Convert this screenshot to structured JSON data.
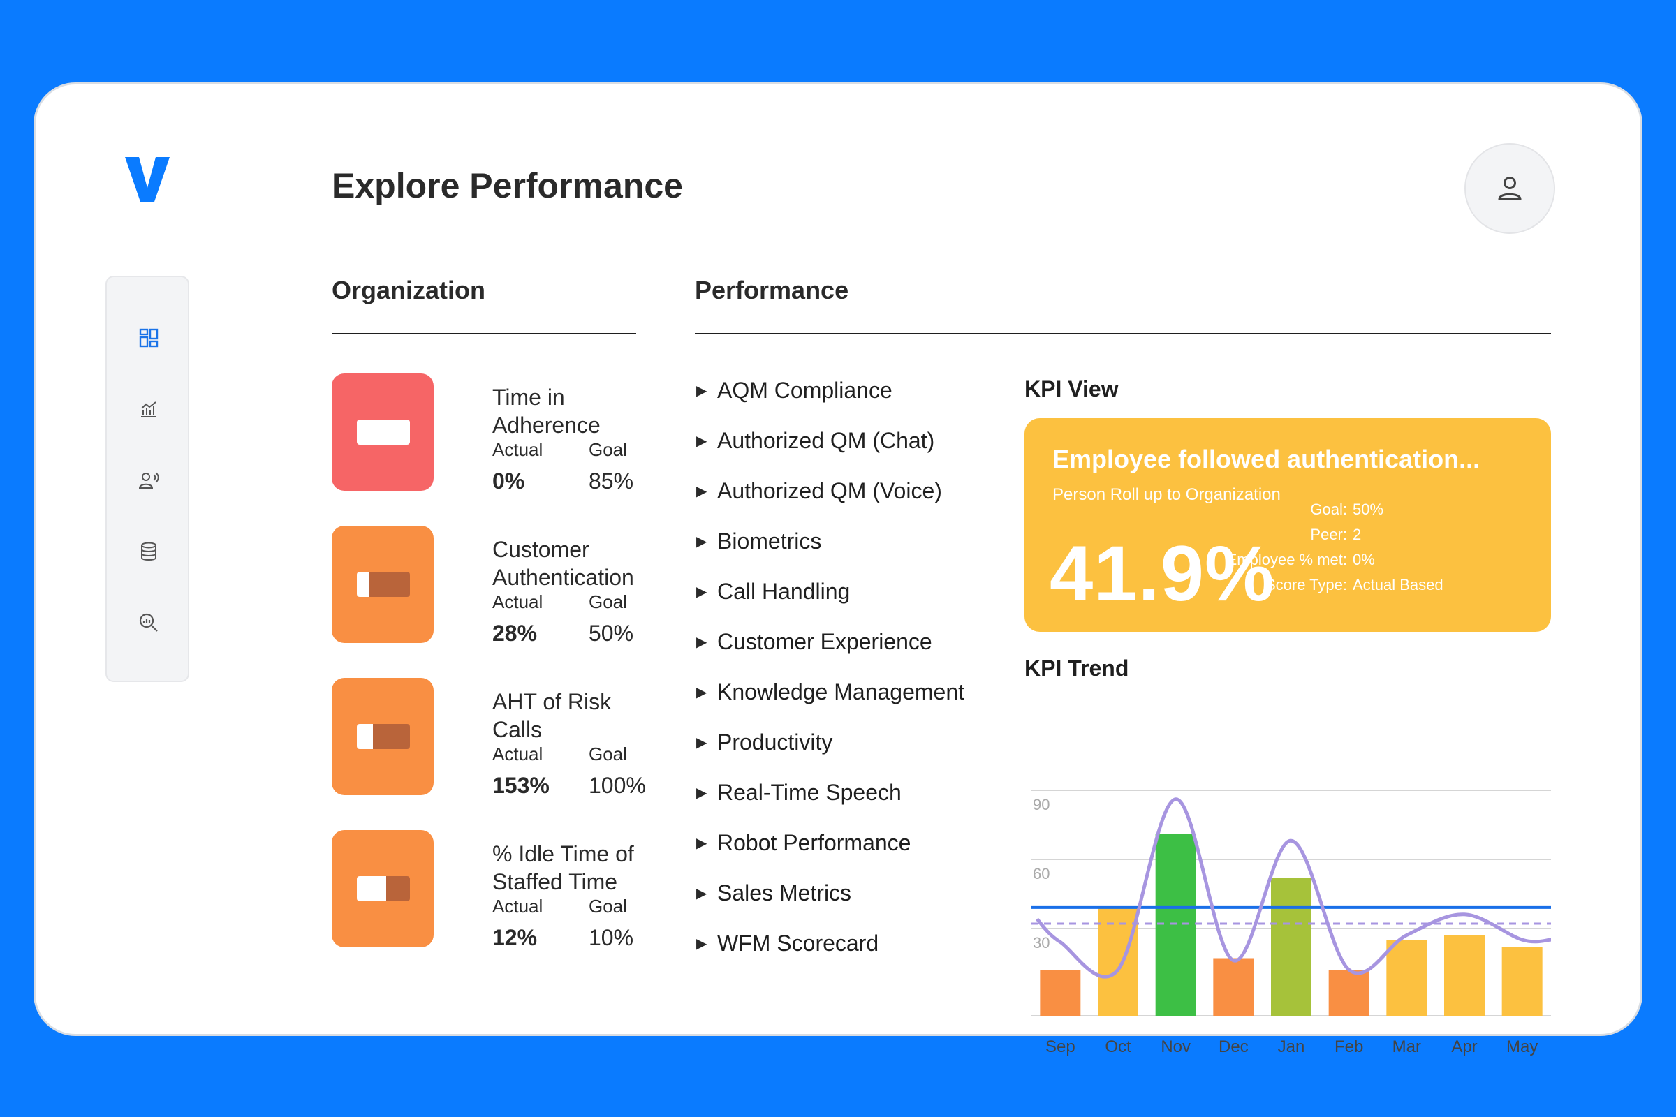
{
  "page_title": "Explore Performance",
  "sidebar_icons": [
    "dashboard-icon",
    "analytics-icon",
    "speech-user-icon",
    "database-icon",
    "search-analytics-icon"
  ],
  "organization": {
    "title": "Organization",
    "tiles": [
      {
        "name": "Time in Adherence",
        "actual_label": "Actual",
        "actual": "0%",
        "goal_label": "Goal",
        "goal": "85%",
        "color": "#f66566",
        "fill": 0
      },
      {
        "name": "Customer Authentication",
        "actual_label": "Actual",
        "actual": "28%",
        "goal_label": "Goal",
        "goal": "50%",
        "color": "#f98f43",
        "fill": 0.28
      },
      {
        "name": "AHT of Risk Calls",
        "actual_label": "Actual",
        "actual": "153%",
        "goal_label": "Goal",
        "goal": "100%",
        "color": "#f98f43",
        "fill": 0.7
      },
      {
        "name": "% Idle Time of Staffed Time",
        "actual_label": "Actual",
        "actual": "12%",
        "goal_label": "Goal",
        "goal": "10%",
        "color": "#f98f43",
        "fill": 0.45
      }
    ]
  },
  "performance": {
    "title": "Performance",
    "items": [
      "AQM Compliance",
      "Authorized QM (Chat)",
      "Authorized QM (Voice)",
      "Biometrics",
      "Call Handling",
      "Customer Experience",
      "Knowledge Management",
      "Productivity",
      "Real-Time Speech",
      "Robot Performance",
      "Sales Metrics",
      "WFM Scorecard"
    ]
  },
  "kpi_view": {
    "heading": "KPI View",
    "title": "Employee followed authentication...",
    "subtitle": "Person Roll up to Organization",
    "value": "41.9%",
    "meta": [
      {
        "key": "Goal:",
        "value": "50%"
      },
      {
        "key": "Peer:",
        "value": "2"
      },
      {
        "key": "Employee % met:",
        "value": "0%"
      },
      {
        "key": "Score Type:",
        "value": "Actual Based"
      }
    ],
    "color": "#fcc140"
  },
  "kpi_trend": {
    "heading": "KPI Trend"
  },
  "chart_data": {
    "type": "bar",
    "categories": [
      "Sep",
      "Oct",
      "Nov",
      "Dec",
      "Jan",
      "Feb",
      "Mar",
      "Apr",
      "May"
    ],
    "values": [
      20,
      47,
      79,
      25,
      60,
      20,
      33,
      35,
      30
    ],
    "bar_colors": [
      "#f98f43",
      "#fcc140",
      "#3dbf45",
      "#f98f43",
      "#a6c23a",
      "#f98f43",
      "#fcc140",
      "#fcc140",
      "#fcc140"
    ],
    "line_values": [
      32,
      20,
      94,
      24,
      76,
      20,
      35,
      44,
      33
    ],
    "line_color": "#a795e0",
    "goal_line": 47,
    "goal_color": "#1a6fe8",
    "avg_line": 40,
    "avg_color": "#a795e0",
    "yticks": [
      30,
      60,
      90
    ],
    "ylim": [
      0,
      100
    ],
    "grid": true
  }
}
